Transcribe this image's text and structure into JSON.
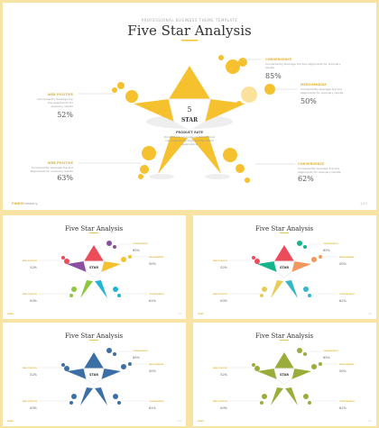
{
  "slide": {
    "subtitle": "PROFESSIONAL BUSINESS THEME TEMPLATE",
    "title": "Five Star Analysis",
    "center_number": "5",
    "center_label": "STAR",
    "product_rate": "PRODUCT RATE",
    "product_text": [
      "Dynamically innovate multifunctional",
      "convergence through functionalized",
      "applications"
    ],
    "brand": "PINKO",
    "brand_suffix": "Company",
    "page_num": "1/15"
  },
  "items": [
    {
      "label": "WEB POSITIVE",
      "text": [
        "Conveniently leverage top",
        "line alignments for",
        "visionary results"
      ],
      "value": "52%"
    },
    {
      "label": "CONVERGENCE",
      "text": [
        "Conveniently leverage top line alignments for visionary",
        "results"
      ],
      "value": "85%"
    },
    {
      "label": "MERCHANDISE",
      "text": [
        "Conveniently leverage top line",
        "alignments for visionary results"
      ],
      "value": "50%"
    },
    {
      "label": "WEB POSITIVE",
      "text": [
        "Conveniently leverage top line",
        "alignments for visionary results"
      ],
      "value": "63%"
    },
    {
      "label": "CONVERGENCE",
      "text": [
        "Conveniently leverage top line",
        "alignments for visionary results"
      ],
      "value": "62%"
    }
  ],
  "colors": {
    "gold": "#f6c12f",
    "background_border": "#f7e3a3",
    "thumb_palettes": [
      [
        "#ec4b5a",
        "#8a4f9e",
        "#f6c12f",
        "#8dc63f",
        "#21b5d1"
      ],
      [
        "#ec4b5a",
        "#14b58a",
        "#f3985c",
        "#e7cc55",
        "#35b7c9"
      ],
      [
        "#3c6fa6",
        "#3c6fa6",
        "#3c6fa6",
        "#3c6fa6",
        "#3c6fa6"
      ],
      [
        "#9aad3a",
        "#9aad3a",
        "#9aad3a",
        "#9aad3a",
        "#9aad3a"
      ]
    ]
  }
}
